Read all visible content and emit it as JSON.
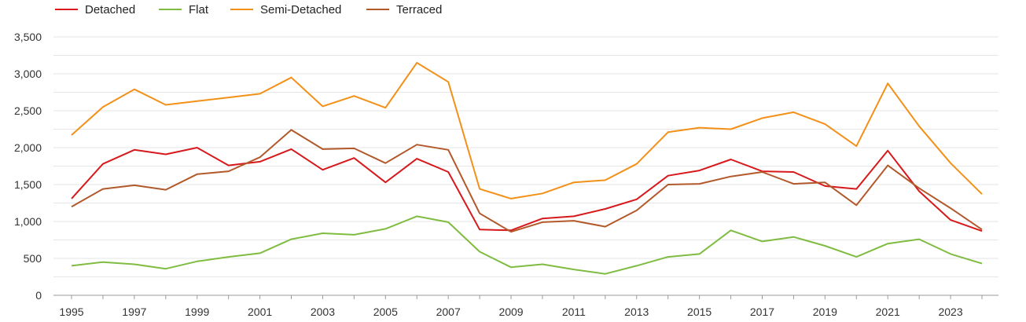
{
  "chart_data": {
    "type": "line",
    "x": [
      1995,
      1996,
      1997,
      1998,
      1999,
      2000,
      2001,
      2002,
      2003,
      2004,
      2005,
      2006,
      2007,
      2008,
      2009,
      2010,
      2011,
      2012,
      2013,
      2014,
      2015,
      2016,
      2017,
      2018,
      2019,
      2020,
      2021,
      2022,
      2023,
      2024
    ],
    "x_tick_labels": [
      "1995",
      "1997",
      "1999",
      "2001",
      "2003",
      "2005",
      "2007",
      "2009",
      "2011",
      "2013",
      "2015",
      "2017",
      "2019",
      "2021",
      "2023"
    ],
    "y_tick_labels": [
      "0",
      "500",
      "1,000",
      "1,500",
      "2,000",
      "2,500",
      "3,000",
      "3,500"
    ],
    "ylim": [
      0,
      3500
    ],
    "grid": true,
    "legend_position": "top-left",
    "series": [
      {
        "name": "Detached",
        "color": "#d7191c",
        "values": [
          1310,
          1780,
          1970,
          1910,
          2000,
          1760,
          1810,
          1980,
          1700,
          1860,
          1530,
          1850,
          1670,
          890,
          880,
          1040,
          1070,
          1170,
          1300,
          1620,
          1690,
          1840,
          1680,
          1670,
          1480,
          1440,
          1960,
          1410,
          1020,
          870
        ]
      },
      {
        "name": "Flat",
        "color": "#7fbc41",
        "values": [
          400,
          450,
          420,
          360,
          460,
          520,
          570,
          760,
          840,
          820,
          900,
          1070,
          990,
          590,
          380,
          420,
          350,
          290,
          400,
          520,
          560,
          880,
          730,
          790,
          670,
          520,
          700,
          760,
          560,
          430
        ]
      },
      {
        "name": "Semi-Detached",
        "color": "#f39018",
        "values": [
          2170,
          2550,
          2790,
          2580,
          2630,
          2680,
          2730,
          2950,
          2560,
          2700,
          2540,
          3150,
          2890,
          1440,
          1310,
          1380,
          1530,
          1560,
          1780,
          2210,
          2270,
          2250,
          2400,
          2480,
          2320,
          2020,
          2870,
          2290,
          1790,
          1370
        ]
      },
      {
        "name": "Terraced",
        "color": "#b2592b",
        "values": [
          1200,
          1440,
          1490,
          1430,
          1640,
          1680,
          1870,
          2240,
          1980,
          1990,
          1790,
          2040,
          1970,
          1110,
          860,
          990,
          1010,
          930,
          1150,
          1500,
          1510,
          1610,
          1670,
          1510,
          1530,
          1220,
          1760,
          1450,
          1180,
          890
        ]
      }
    ]
  }
}
